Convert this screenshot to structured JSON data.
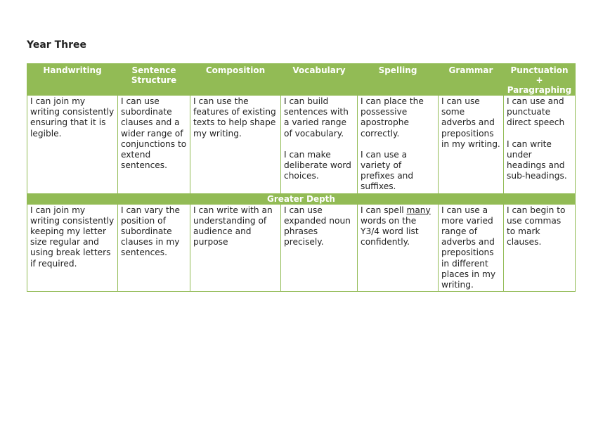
{
  "title": "Year Three",
  "theme_color": "#92bb55",
  "headers": [
    "Handwriting",
    "Sentence Structure",
    "Composition",
    "Vocabulary",
    "Spelling",
    "Grammar",
    "Punctuation + Paragraphing"
  ],
  "expected": [
    [
      "I can join my writing consistently ensuring that it is legible."
    ],
    [
      "I can use subordinate clauses and a wider range of conjunctions to extend sentences."
    ],
    [
      "I can use the features of existing texts to help shape my writing."
    ],
    [
      "I can build sentences with a varied range of vocabulary.",
      "I can make deliberate word choices."
    ],
    [
      "I can place the possessive apostrophe correctly.",
      "I can use a variety of prefixes and suffixes."
    ],
    [
      "I can use some adverbs and prepositions in my writing."
    ],
    [
      "I can use and punctuate direct speech",
      "I can write under headings and sub-headings."
    ]
  ],
  "greater_depth_label": "Greater Depth",
  "greater_depth": {
    "handwriting": "I can join my writing consistently keeping my letter size regular and using break letters if required.",
    "sentence_structure": "I can vary the position of subordinate clauses in my sentences.",
    "composition": "I can write with an understanding of audience and purpose",
    "vocabulary": "I can use expanded noun phrases precisely.",
    "spelling": {
      "before": "I can spell ",
      "underlined": "many",
      "after": " words on the Y3/4 word list confidently."
    },
    "grammar": "I can use a more varied range of adverbs and prepositions in different places in my writing.",
    "punctuation": "I can begin to use commas to mark clauses."
  }
}
